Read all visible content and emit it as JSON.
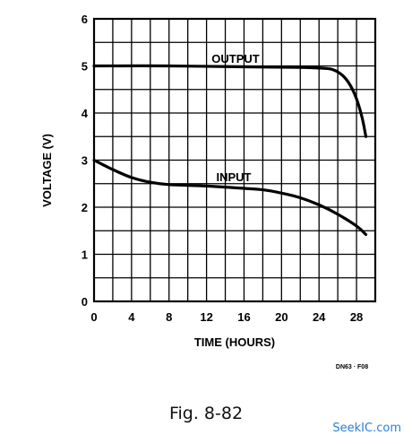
{
  "chart_data": {
    "type": "line",
    "ylabel": "VOLTAGE (V)",
    "xlabel": "TIME (HOURS)",
    "xlim": [
      0,
      30
    ],
    "ylim": [
      0,
      6
    ],
    "xticks": [
      0,
      4,
      8,
      12,
      16,
      20,
      24,
      28
    ],
    "yticks": [
      0,
      1,
      2,
      3,
      4,
      5,
      6
    ],
    "grid": true,
    "grid_x_step": 2,
    "grid_y_step": 0.5,
    "series": [
      {
        "name": "OUTPUT",
        "x": [
          0,
          8,
          16,
          22,
          24.5,
          25.5,
          26.5,
          27.3,
          28,
          28.6,
          29
        ],
        "y": [
          5.0,
          5.0,
          4.98,
          4.97,
          4.95,
          4.92,
          4.8,
          4.6,
          4.3,
          3.9,
          3.5
        ]
      },
      {
        "name": "INPUT",
        "x": [
          0,
          2,
          4,
          6,
          8,
          12,
          16,
          18,
          20,
          22,
          24,
          26,
          28,
          29
        ],
        "y": [
          3.0,
          2.8,
          2.63,
          2.53,
          2.48,
          2.45,
          2.4,
          2.37,
          2.3,
          2.2,
          2.05,
          1.85,
          1.6,
          1.42
        ]
      }
    ]
  },
  "figure_code": "DN63 · F08",
  "caption": "Fig. 8-82",
  "watermark": "SeekIC.com"
}
